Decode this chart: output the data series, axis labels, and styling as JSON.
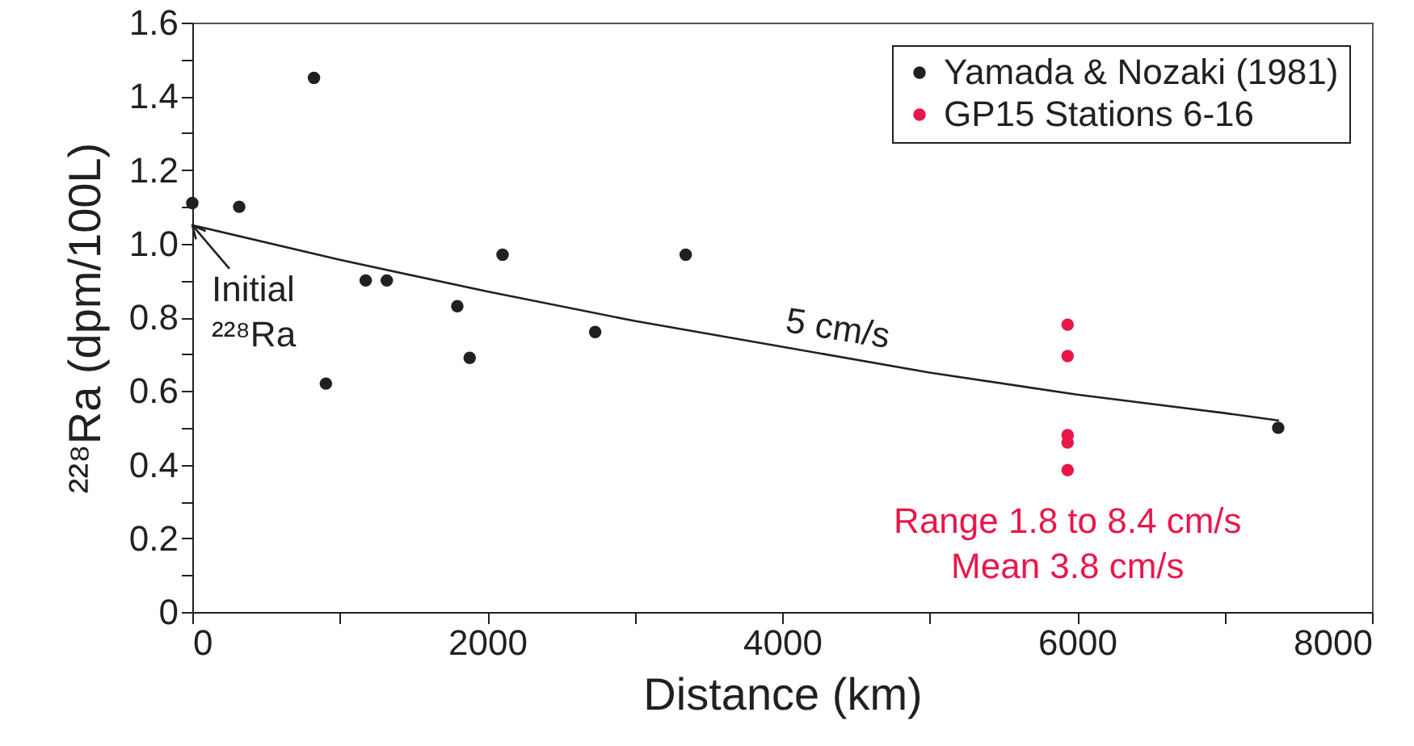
{
  "chart_data": {
    "type": "scatter",
    "xlabel": "Distance (km)",
    "ylabel": "²²⁸Ra (dpm/100L)",
    "xlim": [
      0,
      8000
    ],
    "ylim": [
      0,
      1.6
    ],
    "xticks": [
      0,
      {
        "value": 1000,
        "label": null
      },
      2000,
      {
        "value": 3000,
        "label": null
      },
      4000,
      {
        "value": 5000,
        "label": null
      },
      6000,
      {
        "value": 7000,
        "label": null
      },
      8000
    ],
    "yticks": [
      0,
      {
        "value": 0.1,
        "label": null
      },
      0.2,
      {
        "value": 0.3,
        "label": null
      },
      0.4,
      {
        "value": 0.5,
        "label": null
      },
      0.6,
      {
        "value": 0.7,
        "label": null
      },
      0.8,
      {
        "value": 0.9,
        "label": null
      },
      {
        "value": 1,
        "label": "1.0"
      },
      {
        "value": 1.1,
        "label": null
      },
      1.2,
      {
        "value": 1.3,
        "label": null
      },
      1.4,
      {
        "value": 1.5,
        "label": null
      },
      1.6
    ],
    "grid": false,
    "legend": "top right",
    "marker": "circle",
    "series": [
      {
        "name": "Yamada & Nozaki (1981)",
        "color": "#231f20",
        "x": [
          0,
          318,
          825,
          906,
          1176,
          1319,
          1797,
          1881,
          2104,
          2732,
          3346,
          7364
        ],
        "values": [
          1.11,
          1.1,
          1.45,
          0.62,
          0.9,
          0.9,
          0.83,
          0.69,
          0.97,
          0.76,
          0.97,
          0.5
        ]
      },
      {
        "name": "GP15 Stations 6-16",
        "color": "#e8174a",
        "x": [
          5936,
          5936,
          5936,
          5936,
          5936
        ],
        "values": [
          0.78,
          0.695,
          0.48,
          0.46,
          0.385
        ]
      },
      {
        "type": "line",
        "color": "#231f20",
        "line_style": "solid",
        "marker": "none",
        "x": [
          0,
          1000,
          2000,
          3000,
          4000,
          5000,
          6000,
          7000,
          7364
        ],
        "values": [
          1.05,
          0.956,
          0.87,
          0.79,
          0.72,
          0.65,
          0.59,
          0.54,
          0.52
        ]
      }
    ],
    "annotations": [
      {
        "text": "Initial ²²⁸Ra",
        "x": 0,
        "y": 1.05
      },
      {
        "text": "5 cm/s",
        "x": 4350,
        "y": 0.7
      },
      "Range 1.8 to 8.4 cm/s",
      "Mean 3.8 cm/s"
    ]
  }
}
